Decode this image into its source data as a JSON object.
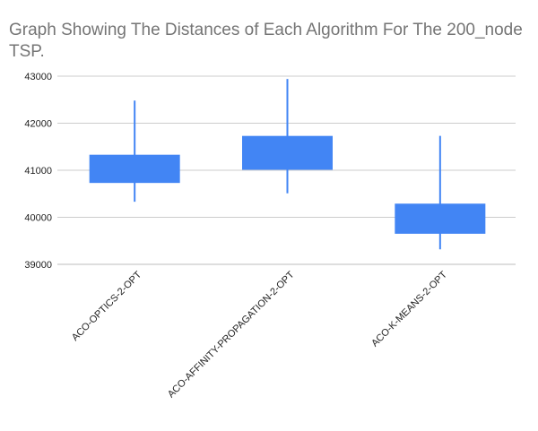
{
  "chart_data": {
    "type": "candlestick",
    "title": "Graph Showing The Distances of Each Algorithm For The 200_node TSP.",
    "xlabel": "",
    "ylabel": "",
    "ylim": [
      39000,
      43000
    ],
    "yticks": [
      "39000",
      "40000",
      "41000",
      "42000",
      "43000"
    ],
    "grid": true,
    "color": "#4285f4",
    "categories": [
      "ACO-OPTICS-2-OPT",
      "ACO-AFFINITY-PROPAGATION-2-OPT",
      "ACO-K-MEANS-2-OPT"
    ],
    "series": [
      {
        "low": [
          40330,
          40510,
          39320
        ],
        "box_low": [
          40730,
          41010,
          39650
        ],
        "box_high": [
          41330,
          41730,
          40290
        ],
        "high": [
          42480,
          42940,
          41730
        ]
      }
    ]
  }
}
